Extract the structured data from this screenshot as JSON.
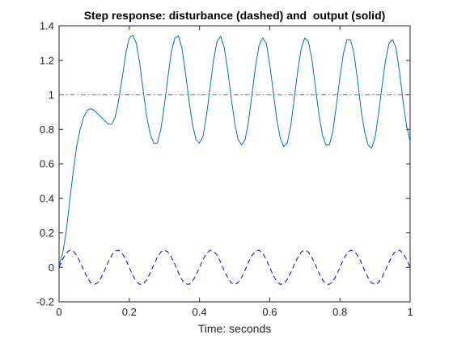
{
  "chart_data": {
    "type": "line",
    "title": "Step response: disturbance (dashed) and  output (solid)",
    "xlabel": "Time: seconds",
    "ylabel": "",
    "xlim": [
      0,
      1
    ],
    "ylim": [
      -0.2,
      1.4
    ],
    "xticks": [
      "0",
      "0.2",
      "0.4",
      "0.6",
      "0.8",
      "1"
    ],
    "yticks": [
      "-0.2",
      "0",
      "0.2",
      "0.4",
      "0.6",
      "0.8",
      "1",
      "1.2",
      "1.4"
    ],
    "grid": false,
    "series": [
      {
        "style": "solid",
        "color": "#0072bd",
        "x": [
          0,
          0.01,
          0.02,
          0.03,
          0.04,
          0.05,
          0.06,
          0.07,
          0.08,
          0.09,
          0.1,
          0.11,
          0.12,
          0.13,
          0.14,
          0.15,
          0.16,
          0.17,
          0.18,
          0.19,
          0.2,
          0.21,
          0.22,
          0.23,
          0.24,
          0.25,
          0.26,
          0.27,
          0.28,
          0.29,
          0.3,
          0.31,
          0.32,
          0.33,
          0.34,
          0.35,
          0.36,
          0.37,
          0.38,
          0.39,
          0.4,
          0.41,
          0.42,
          0.43,
          0.44,
          0.45,
          0.46,
          0.47,
          0.48,
          0.49,
          0.5,
          0.51,
          0.52,
          0.53,
          0.54,
          0.55,
          0.56,
          0.57,
          0.58,
          0.59,
          0.6,
          0.61,
          0.62,
          0.63,
          0.64,
          0.65,
          0.66,
          0.67,
          0.68,
          0.69,
          0.7,
          0.71,
          0.72,
          0.73,
          0.74,
          0.75,
          0.76,
          0.77,
          0.78,
          0.79,
          0.8,
          0.81,
          0.82,
          0.83,
          0.84,
          0.85,
          0.86,
          0.87,
          0.88,
          0.89,
          0.9,
          0.91,
          0.92,
          0.93,
          0.94,
          0.95,
          0.96,
          0.97,
          0.98,
          0.99,
          1.0
        ],
        "y": [
          0.01,
          0.08,
          0.2,
          0.38,
          0.55,
          0.7,
          0.8,
          0.87,
          0.91,
          0.92,
          0.91,
          0.89,
          0.87,
          0.85,
          0.83,
          0.83,
          0.87,
          0.97,
          1.1,
          1.24,
          1.33,
          1.345,
          1.3,
          1.18,
          1.02,
          0.87,
          0.77,
          0.72,
          0.72,
          0.8,
          0.94,
          1.1,
          1.25,
          1.33,
          1.34,
          1.27,
          1.13,
          0.97,
          0.83,
          0.74,
          0.72,
          0.76,
          0.88,
          1.04,
          1.2,
          1.31,
          1.34,
          1.28,
          1.15,
          0.99,
          0.84,
          0.74,
          0.71,
          0.74,
          0.85,
          1.01,
          1.17,
          1.29,
          1.33,
          1.3,
          1.18,
          1.02,
          0.86,
          0.75,
          0.7,
          0.72,
          0.82,
          0.98,
          1.14,
          1.27,
          1.33,
          1.31,
          1.21,
          1.05,
          0.89,
          0.77,
          0.71,
          0.71,
          0.79,
          0.94,
          1.1,
          1.24,
          1.32,
          1.32,
          1.24,
          1.09,
          0.92,
          0.79,
          0.71,
          0.69,
          0.75,
          0.89,
          1.05,
          1.2,
          1.3,
          1.32,
          1.27,
          1.13,
          0.96,
          0.82,
          0.73
        ]
      },
      {
        "style": "dashed",
        "color": "#0000ff",
        "x": [
          0,
          0.01,
          0.02,
          0.03,
          0.04,
          0.05,
          0.06,
          0.07,
          0.08,
          0.09,
          0.1,
          0.11,
          0.12,
          0.13,
          0.14,
          0.15,
          0.16,
          0.17,
          0.18,
          0.19,
          0.2,
          0.21,
          0.22,
          0.23,
          0.24,
          0.25,
          0.26,
          0.27,
          0.28,
          0.29,
          0.3,
          0.31,
          0.32,
          0.33,
          0.34,
          0.35,
          0.36,
          0.37,
          0.38,
          0.39,
          0.4,
          0.41,
          0.42,
          0.43,
          0.44,
          0.45,
          0.46,
          0.47,
          0.48,
          0.49,
          0.5,
          0.51,
          0.52,
          0.53,
          0.54,
          0.55,
          0.56,
          0.57,
          0.58,
          0.59,
          0.6,
          0.61,
          0.62,
          0.63,
          0.64,
          0.65,
          0.66,
          0.67,
          0.68,
          0.69,
          0.7,
          0.71,
          0.72,
          0.73,
          0.74,
          0.75,
          0.76,
          0.77,
          0.78,
          0.79,
          0.8,
          0.81,
          0.82,
          0.83,
          0.84,
          0.85,
          0.86,
          0.87,
          0.88,
          0.89,
          0.9,
          0.91,
          0.92,
          0.93,
          0.94,
          0.95,
          0.96,
          0.97,
          0.98,
          0.99,
          1.0
        ],
        "y": [
          0.0,
          0.046,
          0.081,
          0.099,
          0.095,
          0.071,
          0.031,
          -0.016,
          -0.058,
          -0.089,
          -0.1,
          -0.089,
          -0.058,
          -0.016,
          0.031,
          0.071,
          0.095,
          0.099,
          0.081,
          0.046,
          0.0,
          -0.046,
          -0.081,
          -0.099,
          -0.095,
          -0.071,
          -0.031,
          0.016,
          0.058,
          0.089,
          0.1,
          0.089,
          0.058,
          0.016,
          -0.031,
          -0.071,
          -0.095,
          -0.099,
          -0.081,
          -0.046,
          0.0,
          0.046,
          0.081,
          0.099,
          0.095,
          0.071,
          0.031,
          -0.016,
          -0.058,
          -0.089,
          -0.1,
          -0.089,
          -0.058,
          -0.016,
          0.031,
          0.071,
          0.095,
          0.099,
          0.081,
          0.046,
          0.0,
          -0.046,
          -0.081,
          -0.099,
          -0.095,
          -0.071,
          -0.031,
          0.016,
          0.058,
          0.089,
          0.1,
          0.089,
          0.058,
          0.016,
          -0.031,
          -0.071,
          -0.095,
          -0.099,
          -0.081,
          -0.046,
          0.0,
          0.046,
          0.081,
          0.099,
          0.095,
          0.071,
          0.031,
          -0.016,
          -0.058,
          -0.089,
          -0.1,
          -0.089,
          -0.058,
          -0.016,
          0.031,
          0.071,
          0.095,
          0.099,
          0.081,
          0.046,
          0.0
        ]
      },
      {
        "style": "dash-dot",
        "color": "#00cc00",
        "x": [
          0,
          1
        ],
        "y": [
          1,
          1
        ]
      }
    ]
  }
}
